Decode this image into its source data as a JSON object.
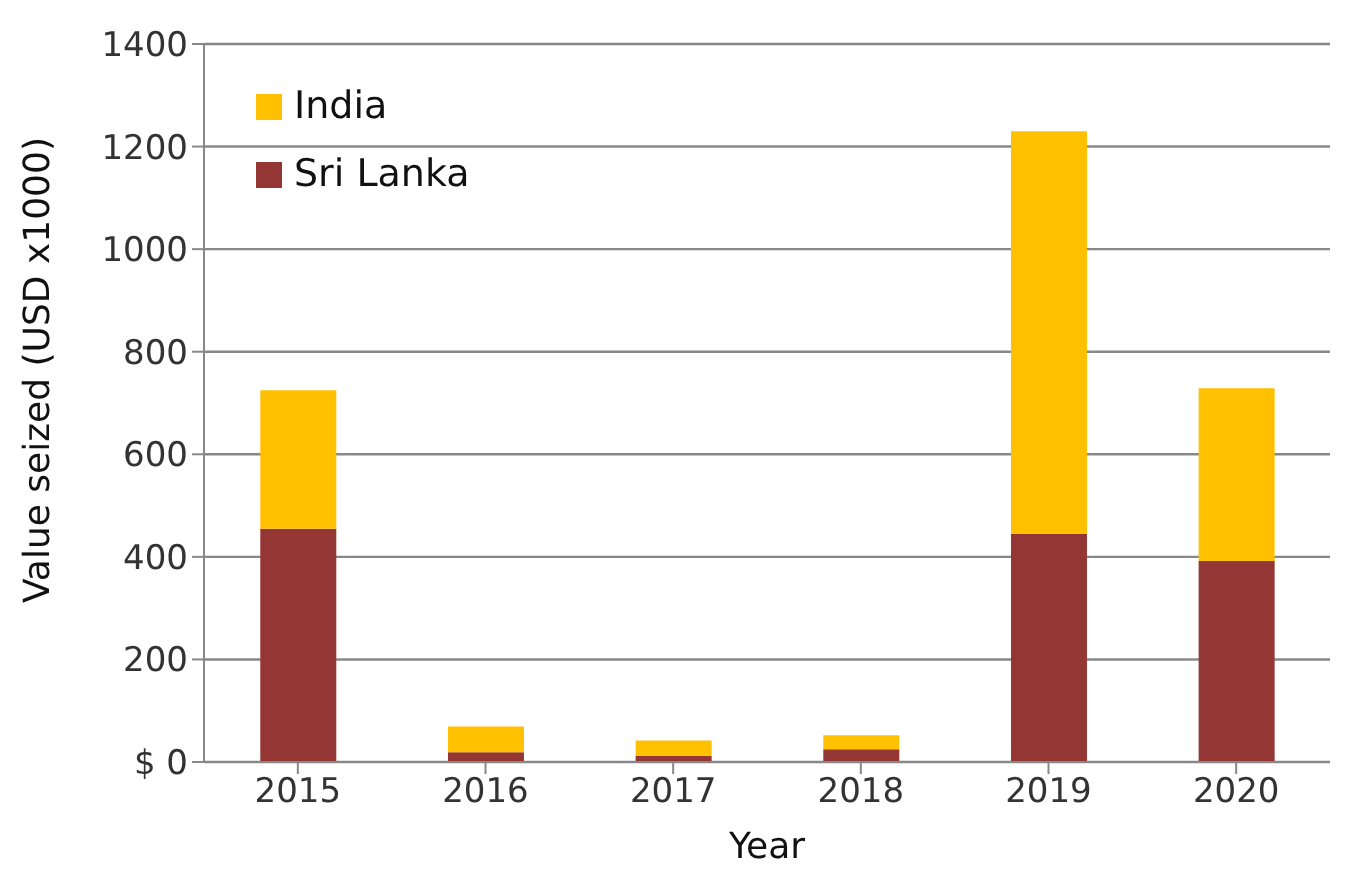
{
  "chart_data": {
    "type": "bar",
    "stacked": true,
    "xlabel": "Year",
    "ylabel": "Value seized (USD x1000)",
    "categories": [
      "2015",
      "2016",
      "2017",
      "2018",
      "2019",
      "2020"
    ],
    "series": [
      {
        "name": "Sri Lanka",
        "color": "#943634",
        "values": [
          455,
          19,
          12,
          25,
          445,
          392
        ]
      },
      {
        "name": "India",
        "color": "#ffc000",
        "values": [
          270,
          50,
          30,
          27,
          785,
          337
        ]
      }
    ],
    "ylim": [
      0,
      1400
    ],
    "yticks": [
      {
        "value": 0,
        "label": "$ 0"
      },
      200,
      400,
      600,
      800,
      1000,
      1200,
      1400
    ],
    "grid": "y",
    "legend": "top left"
  }
}
